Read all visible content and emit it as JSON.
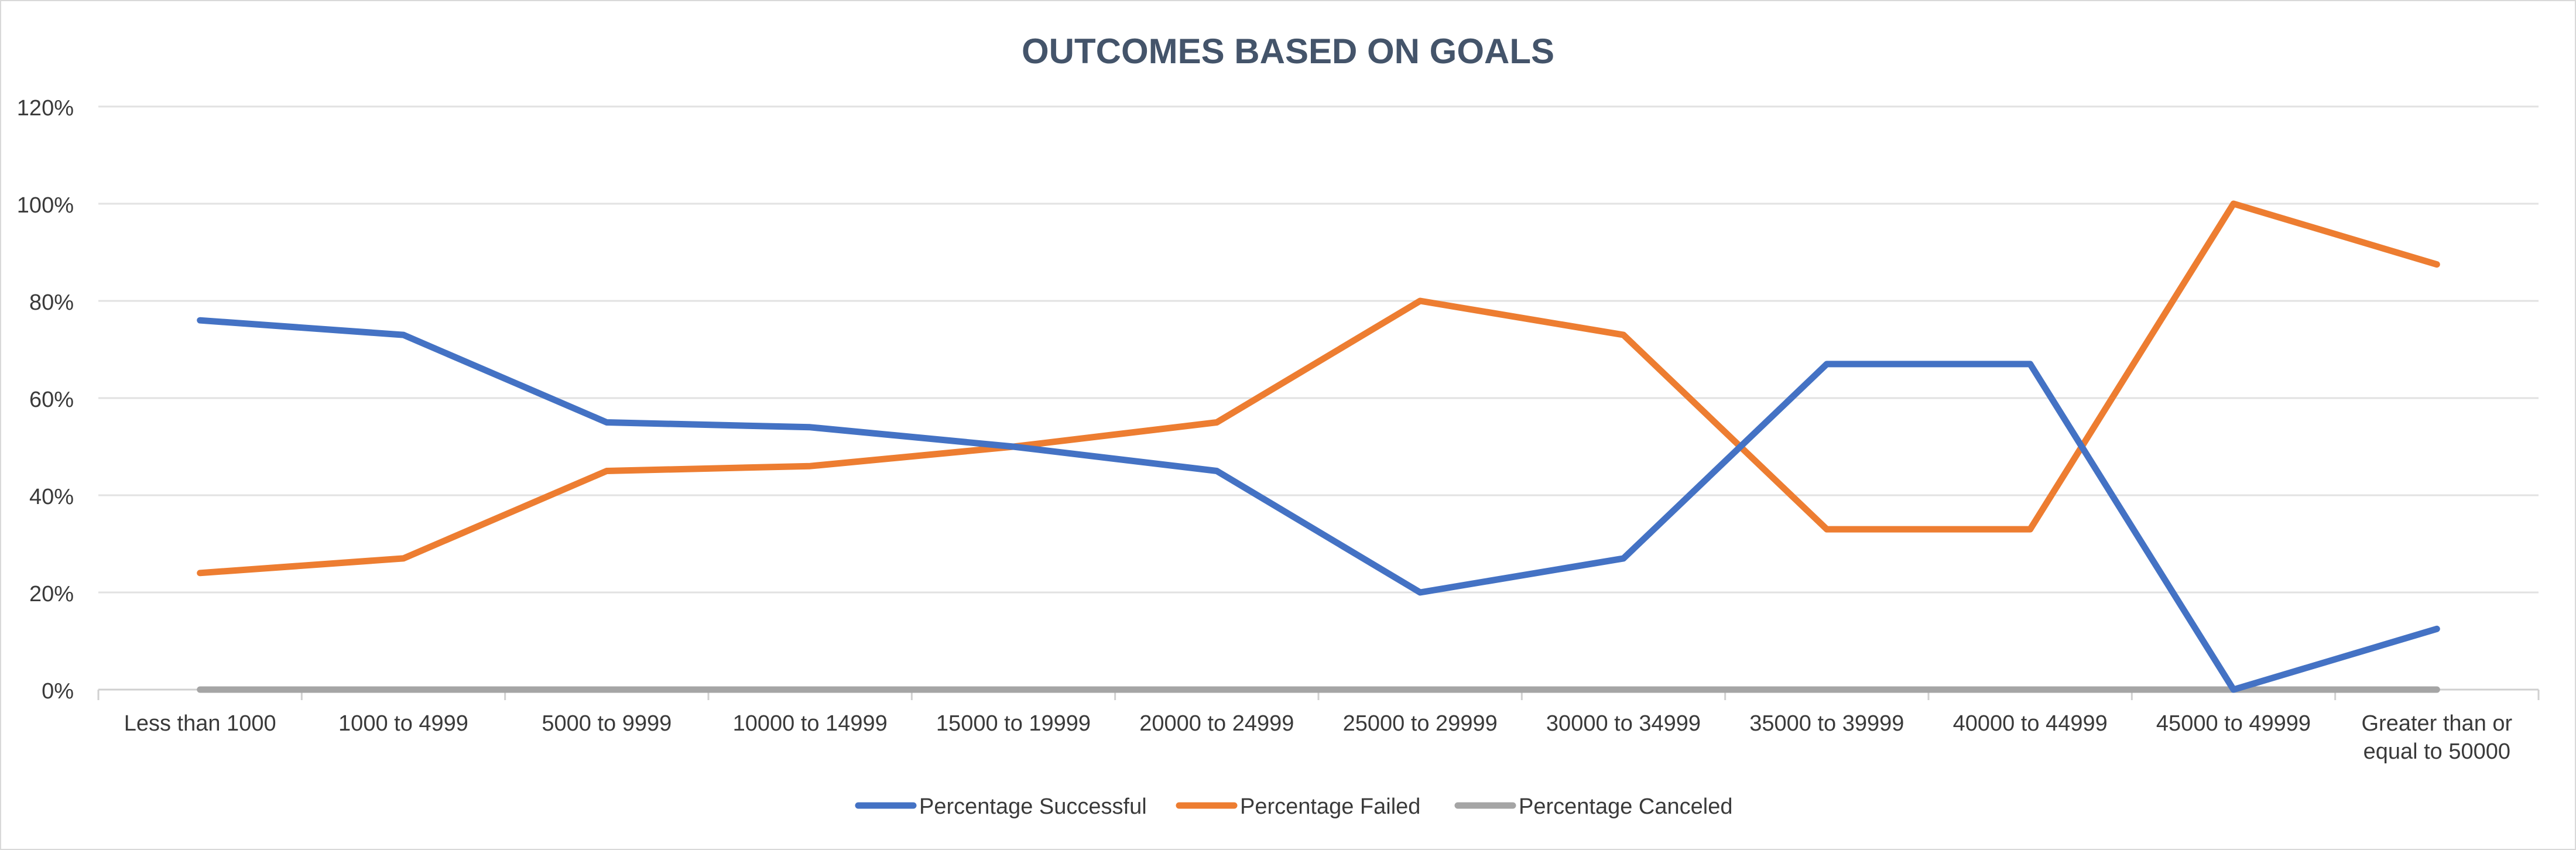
{
  "chart_data": {
    "type": "line",
    "title": "OUTCOMES BASED ON GOALS",
    "xlabel": "",
    "ylabel": "",
    "categories": [
      "Less than 1000",
      "1000 to 4999",
      "5000 to 9999",
      "10000 to 14999",
      "15000 to 19999",
      "20000 to 24999",
      "25000 to 29999",
      "30000 to 34999",
      "35000 to 39999",
      "40000 to 44999",
      "45000 to 49999",
      "Greater than or equal to 50000"
    ],
    "category_lines": [
      [
        "Less than 1000"
      ],
      [
        "1000 to 4999"
      ],
      [
        "5000 to 9999"
      ],
      [
        "10000 to 14999"
      ],
      [
        "15000 to 19999"
      ],
      [
        "20000 to 24999"
      ],
      [
        "25000 to 29999"
      ],
      [
        "30000 to 34999"
      ],
      [
        "35000 to 39999"
      ],
      [
        "40000 to 44999"
      ],
      [
        "45000 to 49999"
      ],
      [
        "Greater than or",
        "equal to 50000"
      ]
    ],
    "series": [
      {
        "name": "Percentage Successful",
        "color": "#4472c4",
        "values": [
          0.76,
          0.73,
          0.55,
          0.54,
          0.5,
          0.45,
          0.2,
          0.27,
          0.67,
          0.67,
          0.0,
          0.125
        ]
      },
      {
        "name": "Percentage Failed",
        "color": "#ed7d31",
        "values": [
          0.24,
          0.27,
          0.45,
          0.46,
          0.5,
          0.55,
          0.8,
          0.73,
          0.33,
          0.33,
          1.0,
          0.875
        ]
      },
      {
        "name": "Percentage Canceled",
        "color": "#a5a5a5",
        "values": [
          0,
          0,
          0,
          0,
          0,
          0,
          0,
          0,
          0,
          0,
          0,
          0
        ]
      }
    ],
    "ylim": [
      0,
      1.2
    ],
    "yticks": [
      0,
      0.2,
      0.4,
      0.6,
      0.8,
      1.0,
      1.2
    ],
    "ytick_labels": [
      "0%",
      "20%",
      "40%",
      "60%",
      "80%",
      "100%",
      "120%"
    ],
    "grid": true,
    "legend_position": "bottom"
  }
}
